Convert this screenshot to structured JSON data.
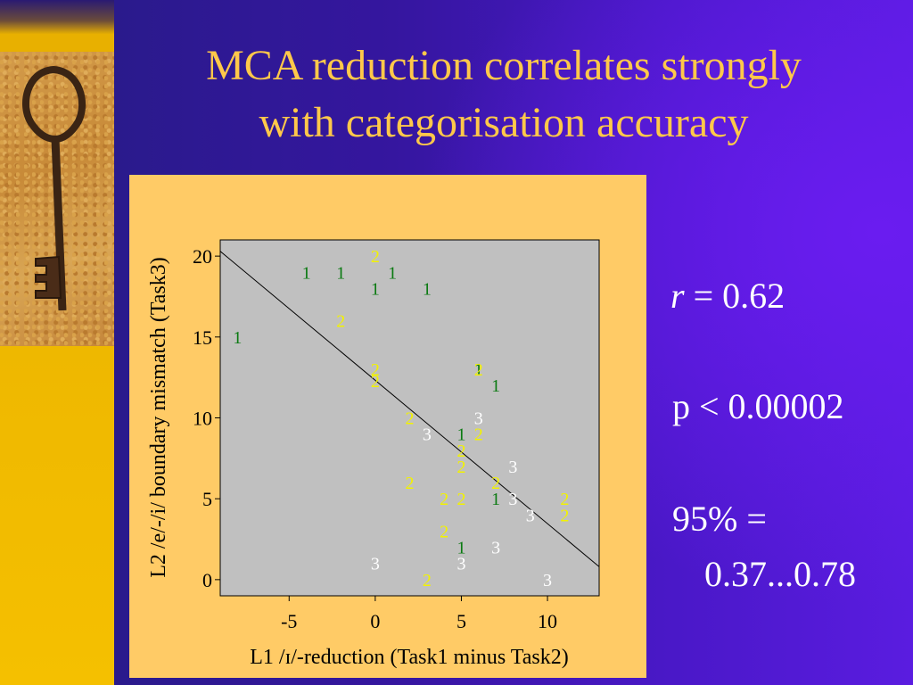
{
  "slide": {
    "title_line1": "MCA reduction correlates strongly",
    "title_line2": "with categorisation accuracy",
    "stats": {
      "r_symbol": "r",
      "r_value": " = 0.62",
      "p_text": "p < 0.00002",
      "ci_label": "95% =",
      "ci_value": "0.37...0.78"
    }
  },
  "colors": {
    "group_1": "#0b7a12",
    "group_2": "#f2f200",
    "group_3": "#ffffff",
    "title": "#ffc84a",
    "plot_bg": "#c0c0c0",
    "panel_bg": "#ffcb66"
  },
  "chart_data": {
    "type": "scatter",
    "xlabel": "L1 /ɪ/-reduction (Task1 minus Task2)",
    "ylabel": "L2 /e/-/i/ boundary mismatch (Task3)",
    "xlim": [
      -9,
      13
    ],
    "ylim": [
      -1,
      21
    ],
    "xticks": [
      -5,
      0,
      5,
      10
    ],
    "yticks": [
      0,
      5,
      10,
      15,
      20
    ],
    "grid": false,
    "regression_line": {
      "x": [
        -9,
        13
      ],
      "y": [
        20.3,
        0.8
      ]
    },
    "points": [
      {
        "x": -8,
        "y": 15,
        "label": "1"
      },
      {
        "x": -4,
        "y": 19,
        "label": "1"
      },
      {
        "x": -2,
        "y": 19,
        "label": "1"
      },
      {
        "x": 1,
        "y": 19,
        "label": "1"
      },
      {
        "x": 0,
        "y": 18,
        "label": "1"
      },
      {
        "x": 3,
        "y": 18,
        "label": "1"
      },
      {
        "x": 6,
        "y": 13,
        "label": "1"
      },
      {
        "x": 7,
        "y": 12,
        "label": "1"
      },
      {
        "x": 5,
        "y": 9,
        "label": "1"
      },
      {
        "x": 7,
        "y": 5,
        "label": "1"
      },
      {
        "x": 5,
        "y": 2,
        "label": "1"
      },
      {
        "x": 0,
        "y": 20,
        "label": "2"
      },
      {
        "x": -2,
        "y": 16,
        "label": "2"
      },
      {
        "x": 0,
        "y": 13,
        "label": "2"
      },
      {
        "x": 0,
        "y": 12.3,
        "label": "2"
      },
      {
        "x": 6,
        "y": 13,
        "label": "2"
      },
      {
        "x": 2,
        "y": 10,
        "label": "2"
      },
      {
        "x": 6,
        "y": 9,
        "label": "2"
      },
      {
        "x": 5,
        "y": 8,
        "label": "2"
      },
      {
        "x": 5,
        "y": 7,
        "label": "2"
      },
      {
        "x": 2,
        "y": 6,
        "label": "2"
      },
      {
        "x": 7,
        "y": 6,
        "label": "2"
      },
      {
        "x": 4,
        "y": 5,
        "label": "2"
      },
      {
        "x": 5,
        "y": 5,
        "label": "2"
      },
      {
        "x": 11,
        "y": 5,
        "label": "2"
      },
      {
        "x": 11,
        "y": 4,
        "label": "2"
      },
      {
        "x": 4,
        "y": 3,
        "label": "2"
      },
      {
        "x": 3,
        "y": 0,
        "label": "2"
      },
      {
        "x": 6,
        "y": 10,
        "label": "3"
      },
      {
        "x": 3,
        "y": 9,
        "label": "3"
      },
      {
        "x": 8,
        "y": 7,
        "label": "3"
      },
      {
        "x": 8,
        "y": 5,
        "label": "3"
      },
      {
        "x": 9,
        "y": 4,
        "label": "3"
      },
      {
        "x": 7,
        "y": 2,
        "label": "3"
      },
      {
        "x": 0,
        "y": 1,
        "label": "3"
      },
      {
        "x": 5,
        "y": 1,
        "label": "3"
      },
      {
        "x": 10,
        "y": 0,
        "label": "3"
      }
    ]
  }
}
